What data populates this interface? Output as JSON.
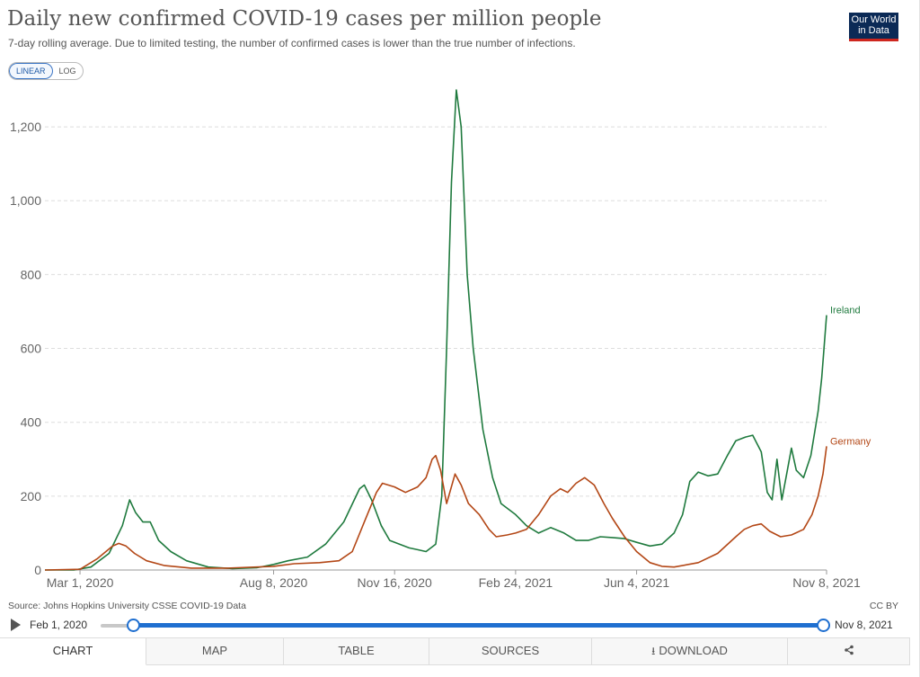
{
  "header": {
    "title": "Daily new confirmed COVID-19 cases per million people",
    "subtitle": "7-day rolling average. Due to limited testing, the number of confirmed cases is lower than the true number of infections.",
    "logo_line1": "Our World",
    "logo_line2": "in Data"
  },
  "scale_toggle": {
    "linear": "LINEAR",
    "log": "LOG",
    "active": "LINEAR"
  },
  "footer": {
    "source": "Source: Johns Hopkins University CSSE COVID-19 Data",
    "license": "CC BY"
  },
  "timeline": {
    "start_label": "Feb 1, 2020",
    "end_label": "Nov 8, 2021"
  },
  "tabs": [
    {
      "label": "CHART",
      "active": true
    },
    {
      "label": "MAP",
      "active": false
    },
    {
      "label": "TABLE",
      "active": false
    },
    {
      "label": "SOURCES",
      "active": false
    },
    {
      "label": "DOWNLOAD",
      "active": false
    },
    {
      "label": "",
      "active": false
    }
  ],
  "colors": {
    "ireland": "#1f7a3e",
    "germany": "#b34716",
    "grid": "#dddddd",
    "accent": "#1f6fd0"
  },
  "icons": {
    "download": "download-icon",
    "share": "share-icon",
    "play": "play-icon"
  },
  "chart_data": {
    "type": "line",
    "x_type": "date",
    "xlim": [
      "2020-02-01",
      "2021-11-08"
    ],
    "ylim": [
      0,
      1300
    ],
    "yticks": [
      0,
      200,
      400,
      600,
      800,
      1000,
      1200
    ],
    "ytick_labels": [
      "0",
      "200",
      "400",
      "600",
      "800",
      "1,000",
      "1,200"
    ],
    "xticks": [
      "2020-03-01",
      "2020-08-08",
      "2020-11-16",
      "2021-02-24",
      "2021-06-04",
      "2021-11-08"
    ],
    "xtick_labels": [
      "Mar 1, 2020",
      "Aug 8, 2020",
      "Nov 16, 2020",
      "Feb 24, 2021",
      "Jun 4, 2021",
      "Nov 8, 2021"
    ],
    "grid": "horizontal-dashed",
    "legend": "line-end labels",
    "series": [
      {
        "name": "Ireland",
        "color": "#1f7a3e",
        "points": [
          [
            "2020-02-01",
            0
          ],
          [
            "2020-02-25",
            0
          ],
          [
            "2020-03-10",
            8
          ],
          [
            "2020-03-25",
            45
          ],
          [
            "2020-04-05",
            120
          ],
          [
            "2020-04-11",
            190
          ],
          [
            "2020-04-16",
            155
          ],
          [
            "2020-04-22",
            130
          ],
          [
            "2020-04-28",
            130
          ],
          [
            "2020-05-05",
            80
          ],
          [
            "2020-05-15",
            50
          ],
          [
            "2020-05-28",
            25
          ],
          [
            "2020-06-15",
            8
          ],
          [
            "2020-07-05",
            4
          ],
          [
            "2020-07-25",
            6
          ],
          [
            "2020-08-08",
            15
          ],
          [
            "2020-08-20",
            25
          ],
          [
            "2020-09-05",
            35
          ],
          [
            "2020-09-20",
            70
          ],
          [
            "2020-10-05",
            130
          ],
          [
            "2020-10-18",
            220
          ],
          [
            "2020-10-22",
            230
          ],
          [
            "2020-10-28",
            190
          ],
          [
            "2020-11-05",
            120
          ],
          [
            "2020-11-12",
            80
          ],
          [
            "2020-11-20",
            70
          ],
          [
            "2020-11-28",
            60
          ],
          [
            "2020-12-05",
            55
          ],
          [
            "2020-12-12",
            50
          ],
          [
            "2020-12-20",
            70
          ],
          [
            "2020-12-25",
            200
          ],
          [
            "2020-12-29",
            600
          ],
          [
            "2021-01-02",
            1050
          ],
          [
            "2021-01-06",
            1300
          ],
          [
            "2021-01-10",
            1200
          ],
          [
            "2021-01-15",
            800
          ],
          [
            "2021-01-20",
            600
          ],
          [
            "2021-01-28",
            380
          ],
          [
            "2021-02-05",
            250
          ],
          [
            "2021-02-12",
            180
          ],
          [
            "2021-02-24",
            150
          ],
          [
            "2021-03-05",
            120
          ],
          [
            "2021-03-15",
            100
          ],
          [
            "2021-03-25",
            115
          ],
          [
            "2021-04-05",
            100
          ],
          [
            "2021-04-15",
            80
          ],
          [
            "2021-04-25",
            80
          ],
          [
            "2021-05-05",
            90
          ],
          [
            "2021-05-15",
            88
          ],
          [
            "2021-05-25",
            85
          ],
          [
            "2021-06-04",
            75
          ],
          [
            "2021-06-15",
            65
          ],
          [
            "2021-06-25",
            70
          ],
          [
            "2021-07-05",
            100
          ],
          [
            "2021-07-12",
            150
          ],
          [
            "2021-07-18",
            240
          ],
          [
            "2021-07-25",
            265
          ],
          [
            "2021-08-02",
            255
          ],
          [
            "2021-08-10",
            260
          ],
          [
            "2021-08-18",
            310
          ],
          [
            "2021-08-25",
            350
          ],
          [
            "2021-09-02",
            360
          ],
          [
            "2021-09-08",
            365
          ],
          [
            "2021-09-15",
            320
          ],
          [
            "2021-09-20",
            210
          ],
          [
            "2021-09-24",
            190
          ],
          [
            "2021-09-28",
            300
          ],
          [
            "2021-10-02",
            190
          ],
          [
            "2021-10-06",
            260
          ],
          [
            "2021-10-10",
            330
          ],
          [
            "2021-10-14",
            270
          ],
          [
            "2021-10-20",
            250
          ],
          [
            "2021-10-26",
            310
          ],
          [
            "2021-11-01",
            430
          ],
          [
            "2021-11-04",
            520
          ],
          [
            "2021-11-08",
            690
          ]
        ]
      },
      {
        "name": "Germany",
        "color": "#b34716",
        "points": [
          [
            "2020-02-01",
            0
          ],
          [
            "2020-03-01",
            2
          ],
          [
            "2020-03-15",
            30
          ],
          [
            "2020-03-28",
            65
          ],
          [
            "2020-04-02",
            72
          ],
          [
            "2020-04-08",
            65
          ],
          [
            "2020-04-15",
            45
          ],
          [
            "2020-04-25",
            25
          ],
          [
            "2020-05-10",
            12
          ],
          [
            "2020-06-01",
            5
          ],
          [
            "2020-07-01",
            5
          ],
          [
            "2020-08-08",
            10
          ],
          [
            "2020-08-25",
            17
          ],
          [
            "2020-09-15",
            20
          ],
          [
            "2020-10-01",
            25
          ],
          [
            "2020-10-12",
            50
          ],
          [
            "2020-10-22",
            130
          ],
          [
            "2020-11-01",
            210
          ],
          [
            "2020-11-06",
            235
          ],
          [
            "2020-11-16",
            225
          ],
          [
            "2020-11-25",
            210
          ],
          [
            "2020-12-05",
            225
          ],
          [
            "2020-12-12",
            250
          ],
          [
            "2020-12-17",
            300
          ],
          [
            "2020-12-20",
            310
          ],
          [
            "2020-12-24",
            270
          ],
          [
            "2020-12-29",
            180
          ],
          [
            "2021-01-05",
            260
          ],
          [
            "2021-01-10",
            230
          ],
          [
            "2021-01-16",
            180
          ],
          [
            "2021-01-25",
            150
          ],
          [
            "2021-02-02",
            110
          ],
          [
            "2021-02-08",
            90
          ],
          [
            "2021-02-17",
            95
          ],
          [
            "2021-02-24",
            100
          ],
          [
            "2021-03-05",
            110
          ],
          [
            "2021-03-15",
            150
          ],
          [
            "2021-03-25",
            200
          ],
          [
            "2021-04-02",
            220
          ],
          [
            "2021-04-08",
            210
          ],
          [
            "2021-04-15",
            235
          ],
          [
            "2021-04-22",
            250
          ],
          [
            "2021-04-30",
            230
          ],
          [
            "2021-05-08",
            180
          ],
          [
            "2021-05-15",
            140
          ],
          [
            "2021-05-25",
            90
          ],
          [
            "2021-06-04",
            50
          ],
          [
            "2021-06-15",
            20
          ],
          [
            "2021-06-25",
            10
          ],
          [
            "2021-07-05",
            8
          ],
          [
            "2021-07-25",
            20
          ],
          [
            "2021-08-10",
            45
          ],
          [
            "2021-08-25",
            90
          ],
          [
            "2021-09-01",
            110
          ],
          [
            "2021-09-08",
            120
          ],
          [
            "2021-09-15",
            125
          ],
          [
            "2021-09-22",
            105
          ],
          [
            "2021-10-01",
            90
          ],
          [
            "2021-10-10",
            95
          ],
          [
            "2021-10-20",
            110
          ],
          [
            "2021-10-27",
            150
          ],
          [
            "2021-11-01",
            200
          ],
          [
            "2021-11-05",
            260
          ],
          [
            "2021-11-08",
            335
          ]
        ]
      }
    ]
  }
}
